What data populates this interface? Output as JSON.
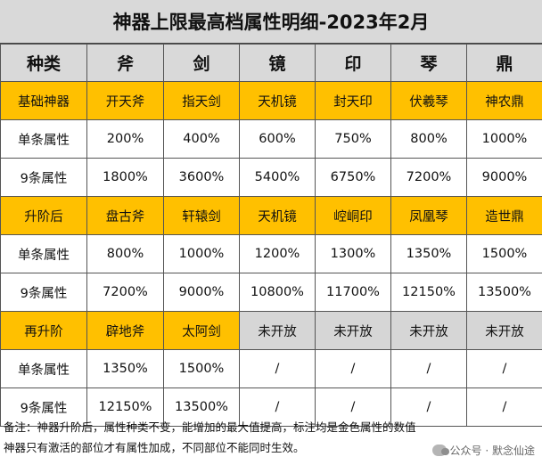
{
  "title": "神器上限最高档属性明细-2023年2月",
  "table": {
    "header": [
      "种类",
      "斧",
      "剑",
      "镜",
      "印",
      "琴",
      "鼎"
    ],
    "rows": [
      [
        "基础神器",
        "开天斧",
        "指天剑",
        "天机镜",
        "封天印",
        "伏羲琴",
        "神农鼎"
      ],
      [
        "单条属性",
        "200%",
        "400%",
        "600%",
        "750%",
        "800%",
        "1000%"
      ],
      [
        "9条属性",
        "1800%",
        "3600%",
        "5400%",
        "6750%",
        "7200%",
        "9000%"
      ],
      [
        "升阶后",
        "盘古斧",
        "轩辕剑",
        "天机镜",
        "崆峒印",
        "凤凰琴",
        "造世鼎"
      ],
      [
        "单条属性",
        "800%",
        "1000%",
        "1200%",
        "1300%",
        "1350%",
        "1500%"
      ],
      [
        "9条属性",
        "7200%",
        "9000%",
        "10800%",
        "11700%",
        "12150%",
        "13500%"
      ],
      [
        "再升阶",
        "辟地斧",
        "太阿剑",
        "未开放",
        "未开放",
        "未开放",
        "未开放"
      ],
      [
        "单条属性",
        "1350%",
        "1500%",
        "/",
        "/",
        "/",
        "/"
      ],
      [
        "9条属性",
        "12150%",
        "13500%",
        "/",
        "/",
        "/",
        "/"
      ]
    ]
  },
  "notes": [
    "备注：神器升阶后，属性种类不变，能增加的最大值提高，标注均是金色属性的数值",
    "神器只有激活的部位才有属性加成，不同部位不能同时生效。"
  ],
  "watermark": "公众号 · 默念仙途",
  "colors": {
    "gold": "#ffc000",
    "gray": "#d9d9d9",
    "border": "#555555"
  }
}
